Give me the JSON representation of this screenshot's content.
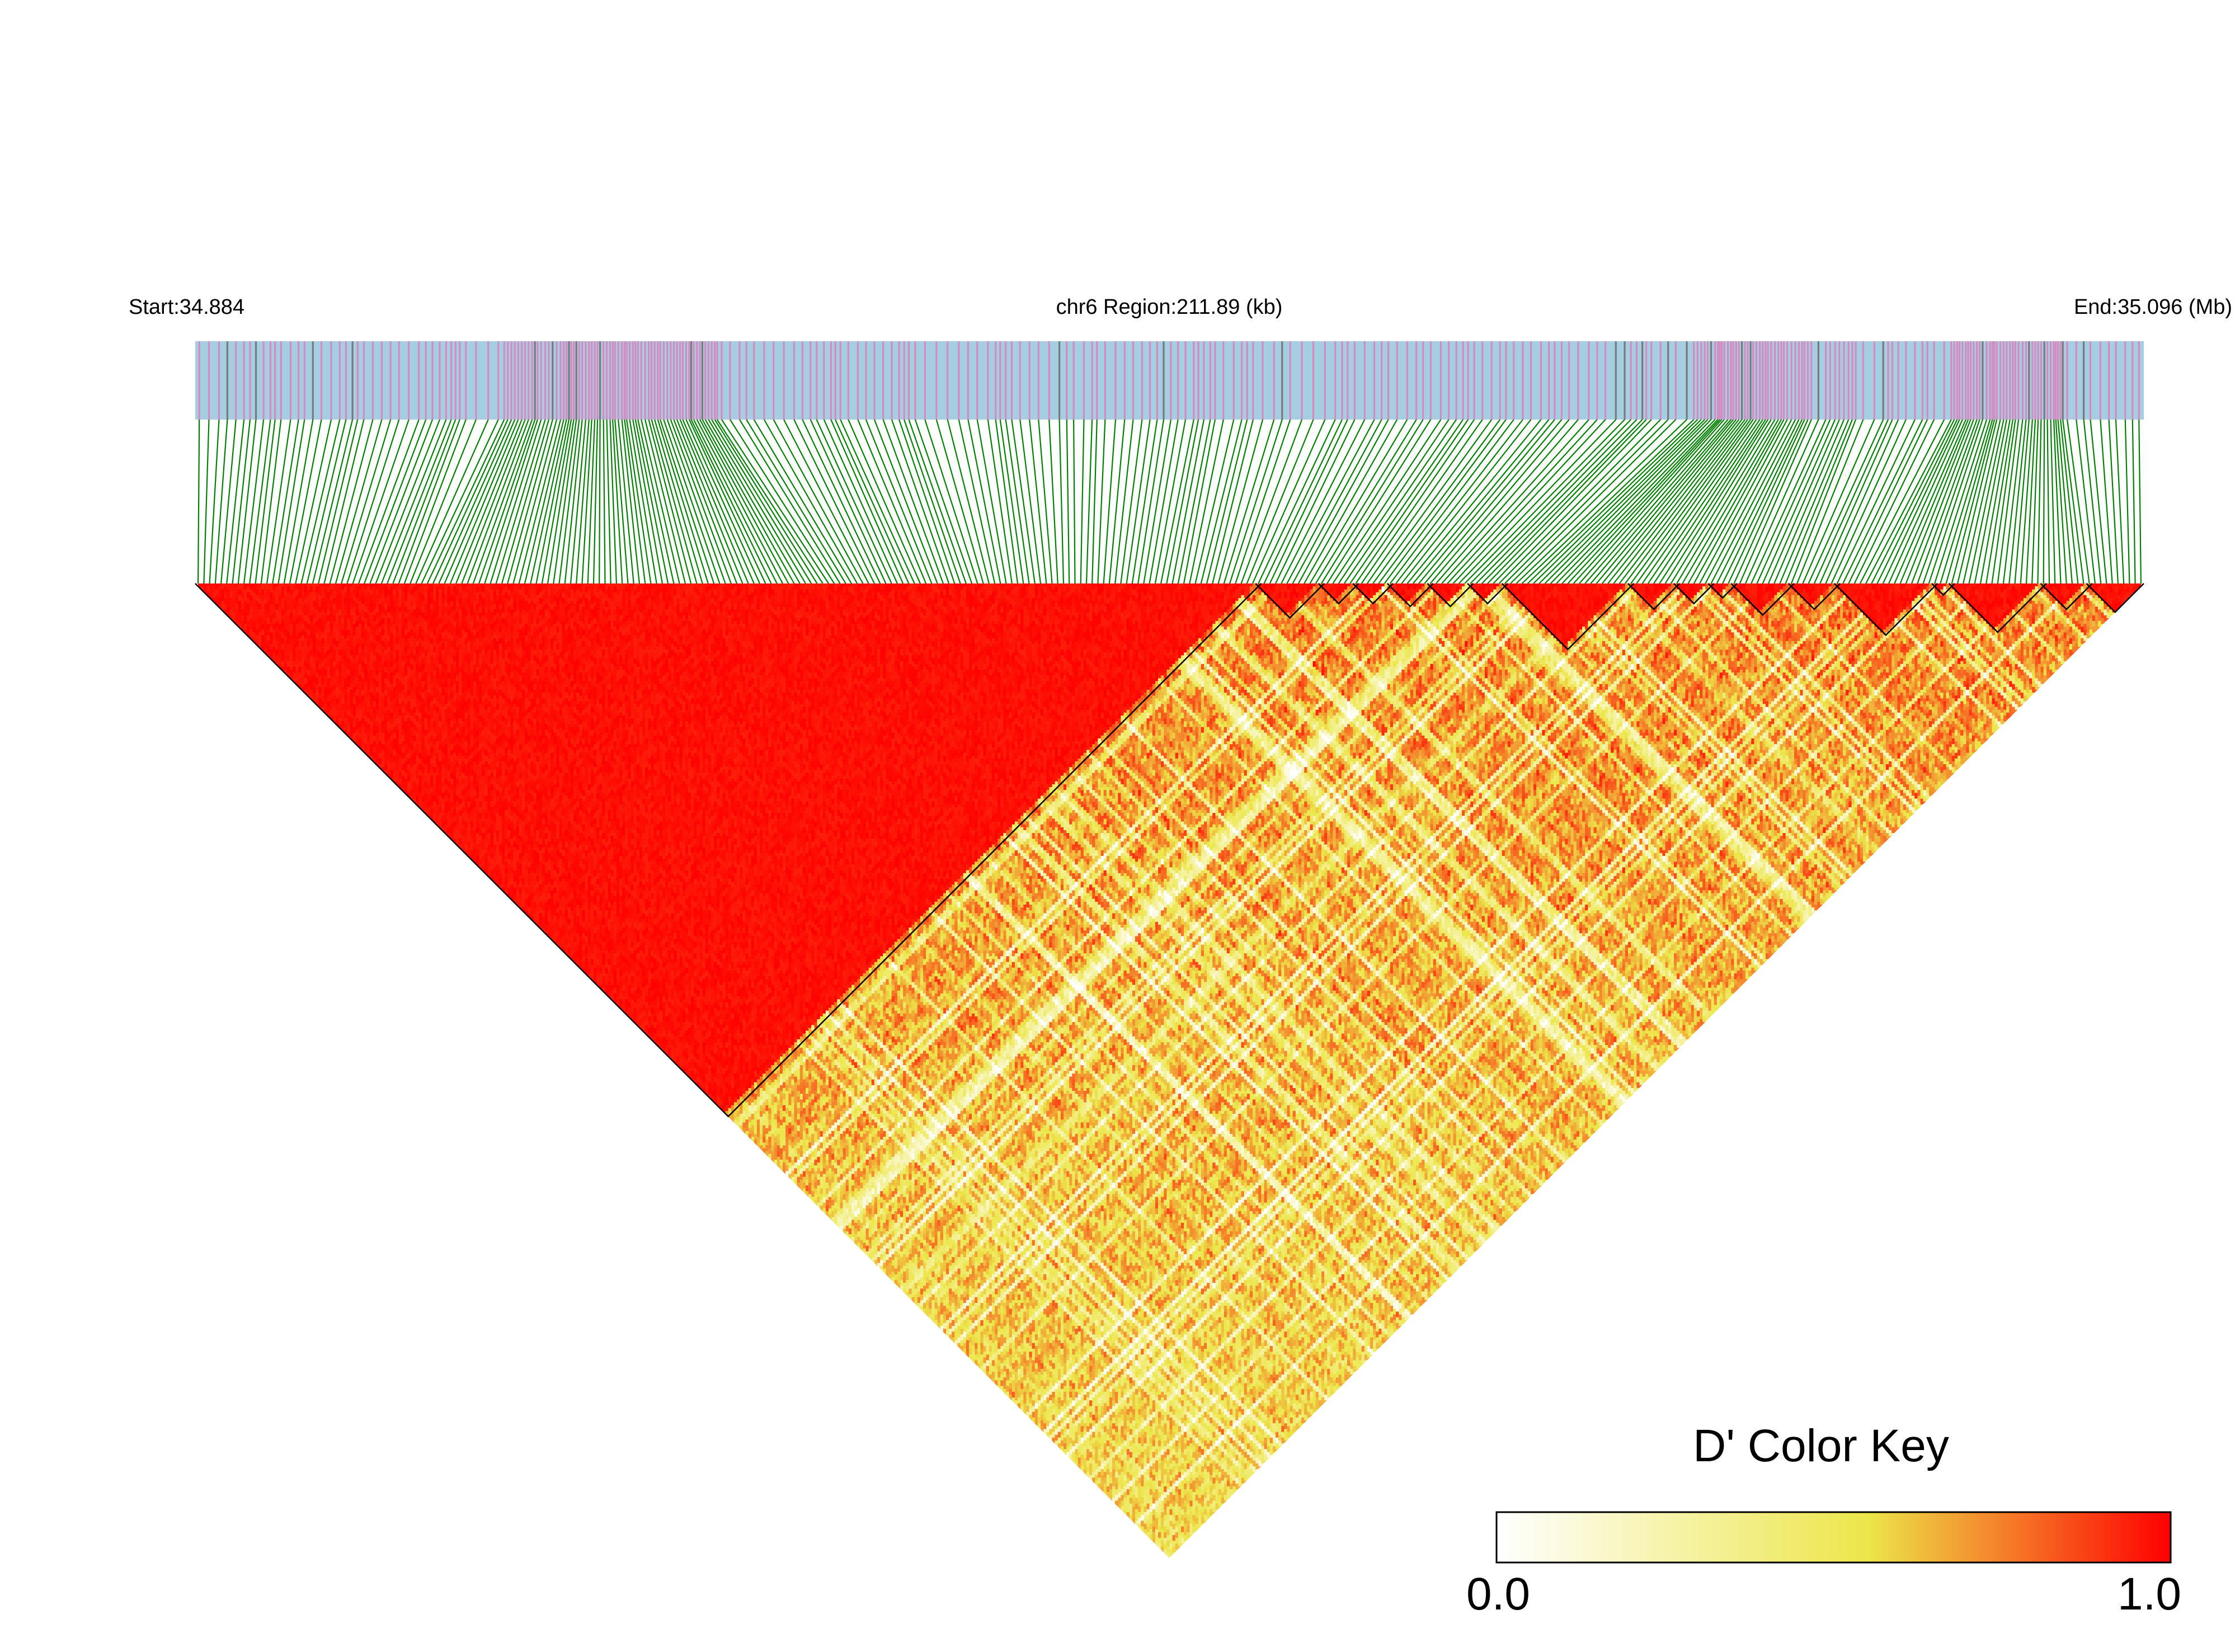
{
  "header": {
    "start_label": "Start:34.884",
    "region_label": "chr6 Region:211.89 (kb)",
    "end_label": "End:35.096 (Mb)"
  },
  "legend": {
    "title": "D' Color Key",
    "min_label": "0.0",
    "max_label": "1.0"
  },
  "colors": {
    "track_background": "#a6cee3",
    "track_tick": "#d58ac0",
    "track_tick_dark": "#7a7a7a",
    "connector": "#008000",
    "block_outline": "#000000",
    "key_low": "#ffffff",
    "key_mid": "#ece64a",
    "key_high": "#ff0000"
  },
  "chart_data": {
    "type": "heatmap",
    "description_kind": "linkage-disequilibrium triangle",
    "chromosome": "chr6",
    "start_mb": 34.884,
    "end_mb": 35.096,
    "region_kb": 211.89,
    "measure": "D'",
    "color_scale": {
      "min": 0.0,
      "max": 1.0
    },
    "snp_count_estimate": 340,
    "ld_blocks_snp_index": [
      [
        0,
        185
      ],
      [
        185,
        196
      ],
      [
        196,
        202
      ],
      [
        202,
        208
      ],
      [
        208,
        215
      ],
      [
        215,
        222
      ],
      [
        222,
        228
      ],
      [
        228,
        250
      ],
      [
        250,
        258
      ],
      [
        258,
        264
      ],
      [
        264,
        268
      ],
      [
        268,
        278
      ],
      [
        278,
        286
      ],
      [
        286,
        303
      ],
      [
        303,
        306
      ],
      [
        306,
        322
      ],
      [
        322,
        330
      ],
      [
        330,
        339
      ]
    ]
  }
}
